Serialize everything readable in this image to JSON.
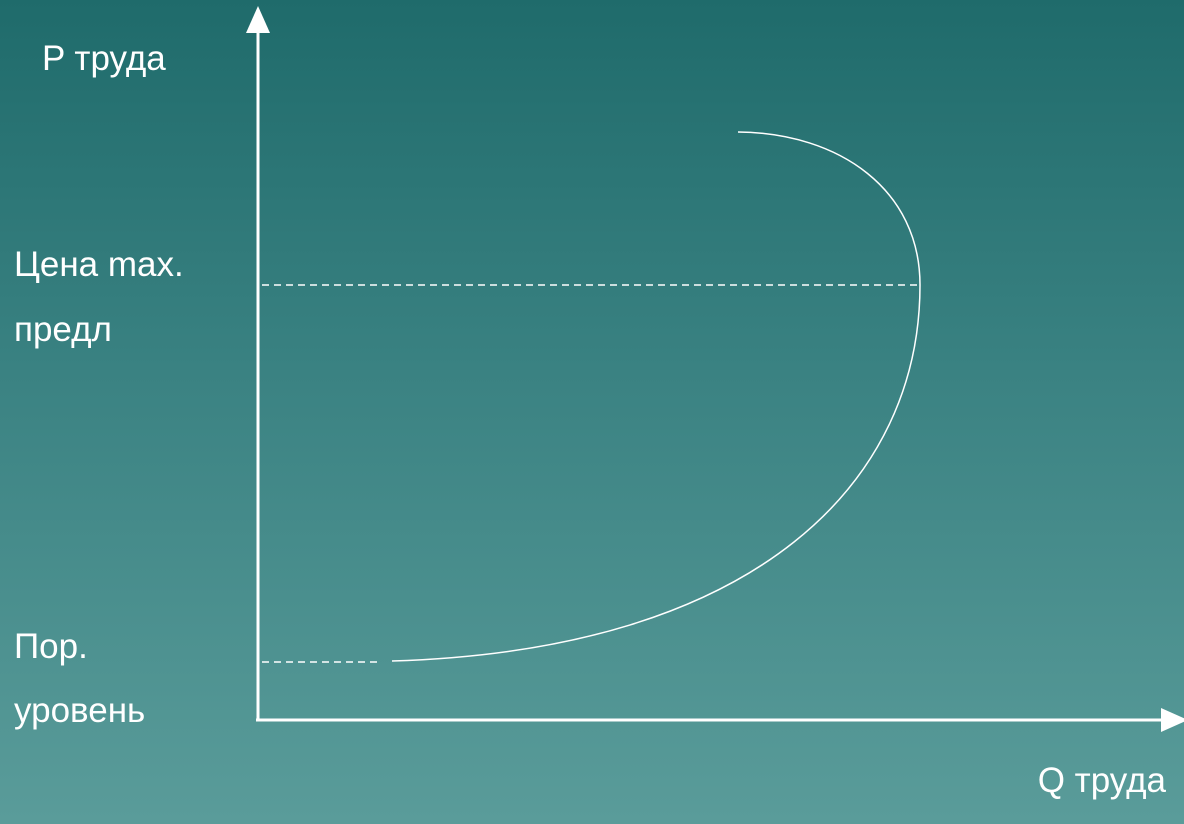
{
  "diagram": {
    "y_axis_label": "P труда",
    "x_axis_label": "Q труда",
    "max_supply_price_label": [
      "Цена max.",
      "предл"
    ],
    "threshold_level_label": [
      "Пор.",
      "уровень"
    ],
    "colors": {
      "background_top": "#1f6b6b",
      "background_bottom": "#5a9c9a",
      "lines": "#ffffff",
      "text": "#ffffff"
    }
  }
}
